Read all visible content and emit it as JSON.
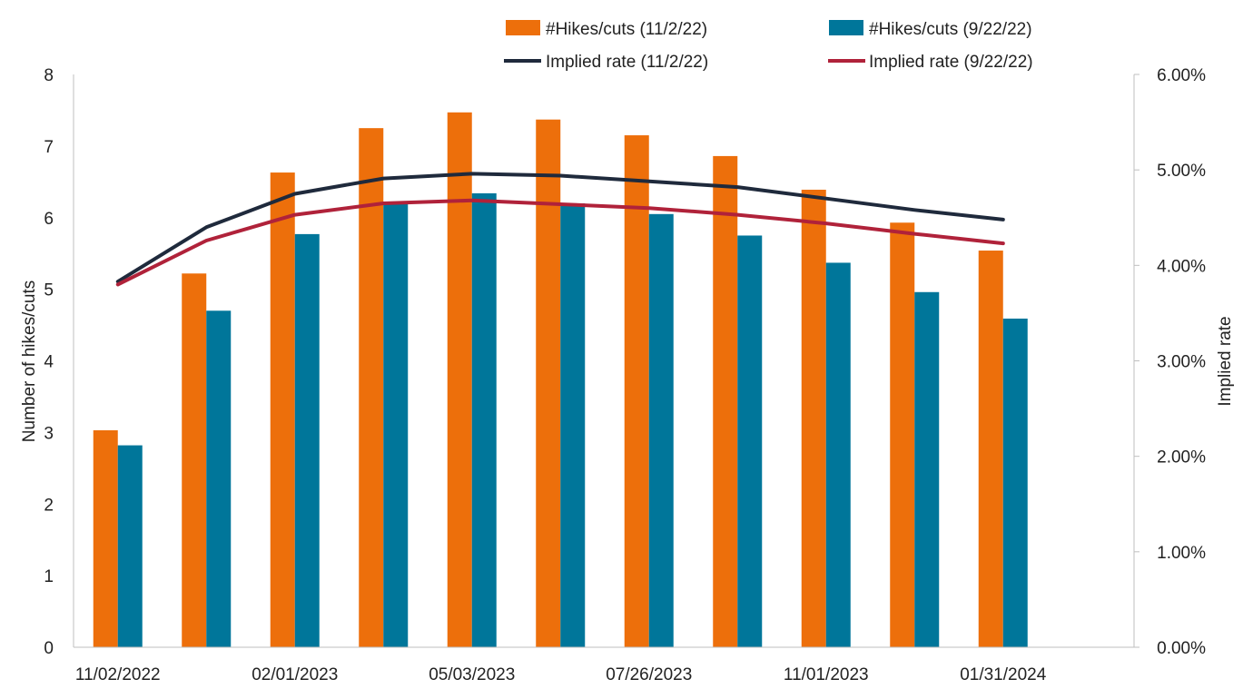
{
  "chart_data": {
    "type": "bar",
    "categories": [
      "11/02/2022",
      "",
      "02/01/2023",
      "",
      "05/03/2023",
      "",
      "07/26/2023",
      "",
      "11/01/2023",
      "",
      "01/31/2024"
    ],
    "series": [
      {
        "name": "#Hikes/cuts (11/2/22)",
        "type": "bar",
        "axis": "left",
        "color": "#ED6F0B",
        "values": [
          3.03,
          5.22,
          6.63,
          7.25,
          7.47,
          7.37,
          7.15,
          6.86,
          6.39,
          5.93,
          5.54
        ]
      },
      {
        "name": "#Hikes/cuts (9/22/22)",
        "type": "bar",
        "axis": "left",
        "color": "#00769A",
        "values": [
          2.82,
          4.7,
          5.77,
          6.2,
          6.34,
          6.2,
          6.05,
          5.75,
          5.37,
          4.96,
          4.59
        ]
      },
      {
        "name": "Implied rate (11/2/22)",
        "type": "line",
        "axis": "right",
        "color": "#1F2A3C",
        "values": [
          3.83,
          4.4,
          4.75,
          4.91,
          4.96,
          4.94,
          4.88,
          4.82,
          4.7,
          4.58,
          4.48
        ]
      },
      {
        "name": "Implied rate (9/22/22)",
        "type": "line",
        "axis": "right",
        "color": "#B0223A",
        "values": [
          3.8,
          4.26,
          4.53,
          4.65,
          4.68,
          4.64,
          4.6,
          4.53,
          4.44,
          4.33,
          4.23
        ]
      }
    ],
    "ylabel": "Number of hikes/cuts",
    "y2label": "Implied rate",
    "ylim": [
      0,
      8
    ],
    "y2lim": [
      0,
      6
    ],
    "yticks": [
      "0",
      "1",
      "2",
      "3",
      "4",
      "5",
      "6",
      "7",
      "8"
    ],
    "y2ticks": [
      "0.00%",
      "1.00%",
      "2.00%",
      "3.00%",
      "4.00%",
      "5.00%",
      "6.00%"
    ],
    "grid": false,
    "legend_position": "top"
  }
}
